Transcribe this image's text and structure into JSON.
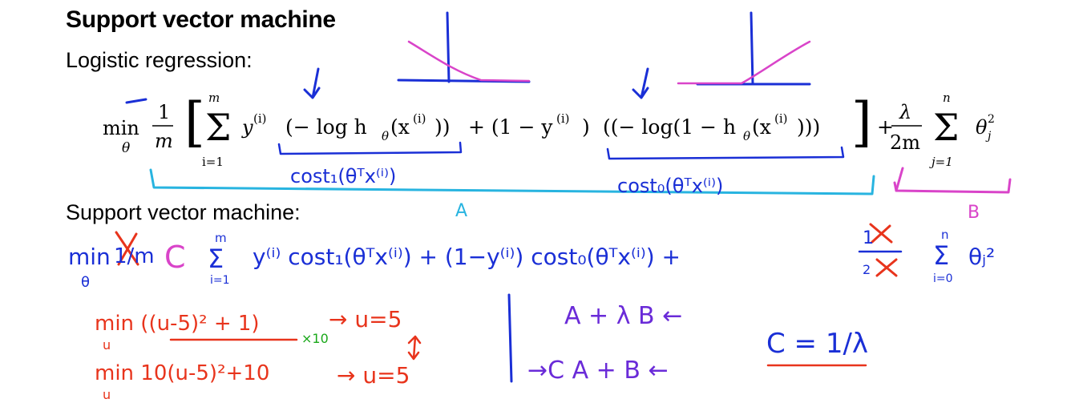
{
  "slide": {
    "title": "Support vector machine",
    "subheading_logistic": "Logistic regression:",
    "subheading_svm": "Support vector machine:"
  },
  "formula_logistic": {
    "min": "min",
    "theta": "θ",
    "one": "1",
    "m": "m",
    "sum_top": "m",
    "sum_bottom": "i=1",
    "y_term": "y",
    "sup_i": "(i)",
    "neg_log_h": "(− log h",
    "theta_sub": "θ",
    "x_arg": "(x",
    "close": "))",
    "plus_one_minus": "+ (1 − y",
    "neg_log_1_minus_h": "((− log(1 − h",
    "close2": ")))",
    "lambda": "λ",
    "two_m": "2m",
    "reg_sum_top": "n",
    "reg_sum_bottom": "j=1",
    "theta_j": "θ",
    "j_sub": "j",
    "two_sup": "2"
  },
  "annotations": {
    "cost1_label": "cost₁(θᵀx⁽ⁱ⁾)",
    "cost0_label": "cost₀(θᵀx⁽ⁱ⁾)",
    "A_label": "A",
    "B_label": "B",
    "svm_line": {
      "min": "min",
      "theta": "θ",
      "one_over_m": "1/m",
      "C": "C",
      "sum_top": "m",
      "sum_bottom": "i=1",
      "main": "y⁽ⁱ⁾ cost₁(θᵀx⁽ⁱ⁾) + (1−y⁽ⁱ⁾) cost₀(θᵀx⁽ⁱ⁾) +",
      "reg_num": "1",
      "reg_den": "2",
      "reg_sum_top": "n",
      "reg_sum_bottom": "i=0",
      "reg_theta": "θⱼ²"
    },
    "example1": "min ((u-5)² + 1)",
    "example1_u": "u",
    "example1_x10": "×10",
    "example1_result": "→ u=5",
    "example2": "min 10(u-5)²+10",
    "example2_u": "u",
    "example2_result": "→ u=5",
    "expr1": "A + λ B ←",
    "expr2": "→C A + B ←",
    "C_eq": "C = 1/λ"
  },
  "colors": {
    "blue": "#1a2fd6",
    "magenta": "#d944c9",
    "cyan": "#28b4e0",
    "red": "#e8341c",
    "green": "#1aa81a",
    "purple": "#6a2bd8"
  }
}
